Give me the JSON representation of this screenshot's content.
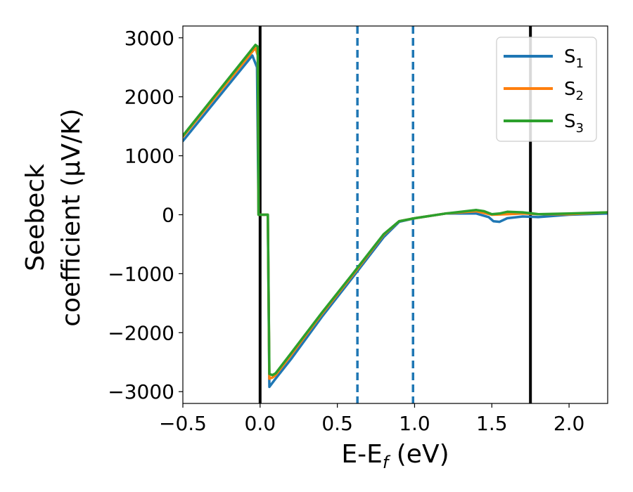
{
  "chart_data": {
    "type": "line",
    "xlabel": {
      "main": "E-E",
      "sub": "f",
      "suffix": " (eV)"
    },
    "ylabel": {
      "line1": "Seebeck",
      "line2": "coefficient  (μV/K)"
    },
    "xlim": [
      -0.5,
      2.25
    ],
    "ylim": [
      -3200,
      3200
    ],
    "xticks": [
      -0.5,
      0.0,
      0.5,
      1.0,
      1.5,
      2.0
    ],
    "xtick_labels": [
      "−0.5",
      "0.0",
      "0.5",
      "1.0",
      "1.5",
      "2.0"
    ],
    "yticks": [
      3000,
      2000,
      1000,
      0,
      -1000,
      -2000,
      -3000
    ],
    "ytick_labels": [
      "3000",
      "2000",
      "1000",
      "0",
      "−1000",
      "−2000",
      "−3000"
    ],
    "grid": false,
    "legend_position": "top-right",
    "vertical_lines": [
      {
        "x": 0.0,
        "style": "solid",
        "color": "#000000"
      },
      {
        "x": 0.63,
        "style": "dashed",
        "color": "#1f77b4"
      },
      {
        "x": 0.99,
        "style": "dashed",
        "color": "#1f77b4"
      },
      {
        "x": 1.75,
        "style": "solid",
        "color": "#000000"
      }
    ],
    "series": [
      {
        "name": "S1",
        "label_main": "S",
        "label_sub": "1",
        "color": "#1f77b4",
        "x": [
          -0.5,
          -0.05,
          -0.02,
          -0.01,
          0.0,
          0.05,
          0.06,
          0.08,
          0.1,
          0.2,
          0.4,
          0.6,
          0.8,
          0.9,
          1.0,
          1.2,
          1.4,
          1.48,
          1.51,
          1.55,
          1.6,
          1.7,
          1.8,
          2.0,
          2.25
        ],
        "y": [
          1250,
          2700,
          2500,
          0,
          0,
          0,
          -2920,
          -2850,
          -2780,
          -2450,
          -1730,
          -1060,
          -380,
          -120,
          -60,
          20,
          20,
          -40,
          -110,
          -120,
          -60,
          -30,
          -40,
          0,
          20
        ]
      },
      {
        "name": "S2",
        "label_main": "S",
        "label_sub": "2",
        "color": "#ff7f0e",
        "x": [
          -0.5,
          -0.03,
          -0.015,
          -0.01,
          0.0,
          0.05,
          0.06,
          0.08,
          0.1,
          0.2,
          0.4,
          0.6,
          0.8,
          0.9,
          1.0,
          1.2,
          1.4,
          1.5,
          1.6,
          1.7,
          1.8,
          2.0,
          2.25
        ],
        "y": [
          1320,
          2830,
          2700,
          0,
          0,
          0,
          -2780,
          -2760,
          -2720,
          -2380,
          -1680,
          -1020,
          -340,
          -110,
          -60,
          20,
          60,
          0,
          10,
          20,
          10,
          10,
          40
        ]
      },
      {
        "name": "S3",
        "label_main": "S",
        "label_sub": "3",
        "color": "#2ca02c",
        "x": [
          -0.5,
          -0.03,
          -0.015,
          -0.01,
          0.0,
          0.05,
          0.06,
          0.08,
          0.1,
          0.2,
          0.4,
          0.6,
          0.8,
          0.9,
          1.0,
          1.2,
          1.4,
          1.45,
          1.5,
          1.55,
          1.6,
          1.7,
          1.8,
          2.0,
          2.25
        ],
        "y": [
          1340,
          2880,
          2850,
          0,
          0,
          0,
          -2700,
          -2720,
          -2690,
          -2350,
          -1660,
          -1000,
          -330,
          -110,
          -60,
          20,
          80,
          60,
          10,
          20,
          50,
          40,
          10,
          20,
          40
        ]
      }
    ]
  }
}
